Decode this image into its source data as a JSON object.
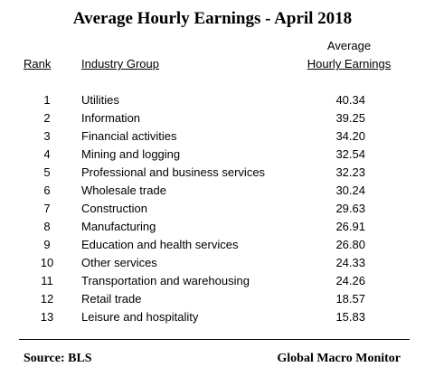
{
  "chart_data": {
    "type": "table",
    "title": "Average Hourly Earnings - April 2018",
    "columns": {
      "rank": "Rank",
      "group": "Industry Group",
      "value_line1": "Average",
      "value_line2": "Hourly Earnings"
    },
    "rows": [
      {
        "rank": "1",
        "group": "Utilities",
        "value": "40.34"
      },
      {
        "rank": "2",
        "group": "Information",
        "value": "39.25"
      },
      {
        "rank": "3",
        "group": "Financial activities",
        "value": "34.20"
      },
      {
        "rank": "4",
        "group": "Mining and logging",
        "value": "32.54"
      },
      {
        "rank": "5",
        "group": "Professional and business services",
        "value": "32.23"
      },
      {
        "rank": "6",
        "group": "Wholesale trade",
        "value": "30.24"
      },
      {
        "rank": "7",
        "group": "Construction",
        "value": "29.63"
      },
      {
        "rank": "8",
        "group": "Manufacturing",
        "value": "26.91"
      },
      {
        "rank": "9",
        "group": "Education and health services",
        "value": "26.80"
      },
      {
        "rank": "10",
        "group": "Other services",
        "value": "24.33"
      },
      {
        "rank": "11",
        "group": "Transportation and warehousing",
        "value": "24.26"
      },
      {
        "rank": "12",
        "group": "Retail trade",
        "value": "18.57"
      },
      {
        "rank": "13",
        "group": "Leisure and hospitality",
        "value": "15.83"
      }
    ],
    "source": "Source:  BLS",
    "credit": "Global Macro Monitor"
  }
}
